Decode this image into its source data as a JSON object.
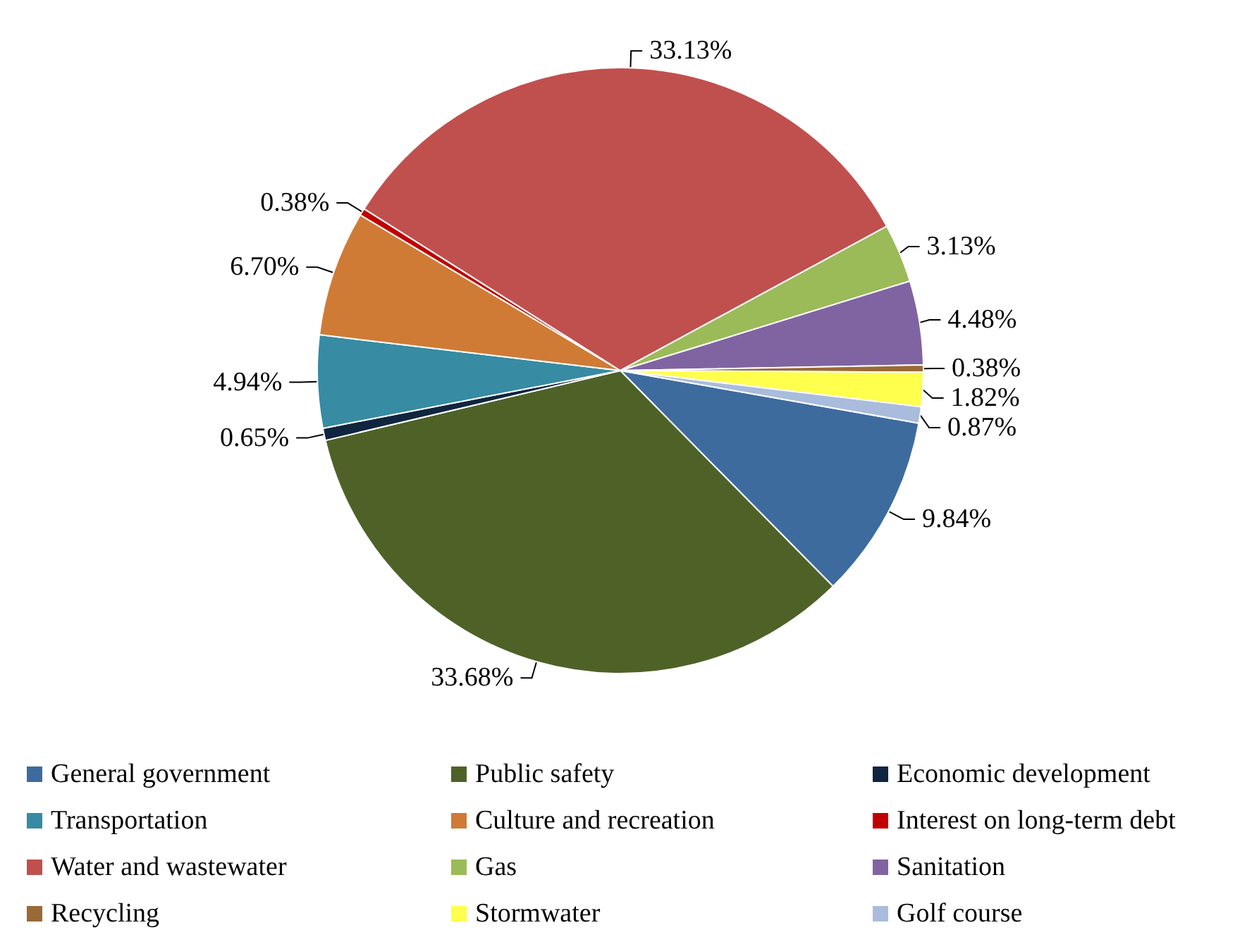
{
  "chart_data": {
    "type": "pie",
    "categories": [
      "General government",
      "Public safety",
      "Economic development",
      "Transportation",
      "Culture and recreation",
      "Interest on long-term debt",
      "Water and wastewater",
      "Gas",
      "Sanitation",
      "Recycling",
      "Stormwater",
      "Golf course"
    ],
    "values": [
      9.84,
      33.68,
      0.65,
      4.94,
      6.7,
      0.38,
      33.13,
      3.13,
      4.48,
      0.38,
      1.82,
      0.87
    ],
    "colors": [
      "#3e6b9e",
      "#4e6228",
      "#10253f",
      "#378ba3",
      "#cf7b36",
      "#c00000",
      "#c0504d",
      "#9bbb59",
      "#8064a2",
      "#9a6a36",
      "#ffff4d",
      "#a9bcdc"
    ],
    "value_labels": [
      "9.84%",
      "33.68%",
      "0.65%",
      "4.94%",
      "6.70%",
      "0.38%",
      "33.13%",
      "3.13%",
      "4.48%",
      "0.38%",
      "1.82%",
      "0.87%"
    ],
    "legend": "bottom"
  }
}
